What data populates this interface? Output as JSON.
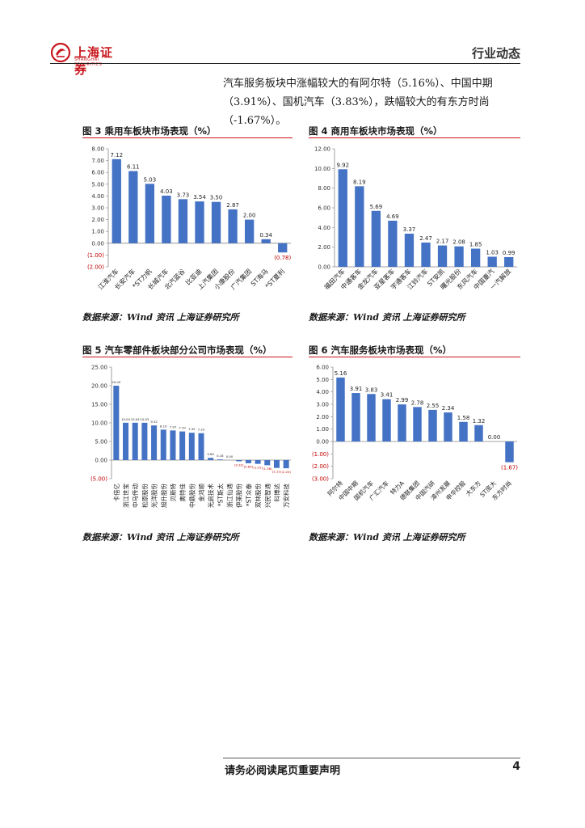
{
  "header": {
    "logo_text": "上海证券",
    "logo_sub": "SHANGHAI SECURITIES",
    "section_tag": "行业动态"
  },
  "intro": "汽车服务板块中涨幅较大的有阿尔特（5.16%）、中国中期（3.91%）、国机汽车（3.83%），跌幅较大的有东方时尚（-1.67%）。",
  "figures": [
    {
      "title": "图 3  乘用车板块市场表现（%）",
      "source": "数据来源：Wind 资讯  上海证券研究所"
    },
    {
      "title": "图 4  商用车板块市场表现（%）",
      "source": "数据来源：Wind 资讯  上海证券研究所"
    },
    {
      "title": "图 5  汽车零部件板块部分公司市场表现（%）",
      "source": "数据来源：Wind 资讯  上海证券研究所"
    },
    {
      "title": "图 6  汽车服务板块市场表现（%）",
      "source": "数据来源：Wind 资讯  上海证券研究所"
    }
  ],
  "footer": {
    "disclaimer": "请务必阅读尾页重要声明",
    "page": "4"
  },
  "colors": {
    "bar": "#4472c4",
    "negative_label": "#c00000",
    "accent": "#c8161d"
  },
  "chart_data": [
    {
      "type": "bar",
      "categories": [
        "江淮汽车",
        "长安汽车",
        "*ST力帆",
        "长城汽车",
        "北汽蓝谷",
        "比亚迪",
        "上汽集团",
        "小康股份",
        "广汽集团",
        "ST海马",
        "*ST夏利"
      ],
      "values": [
        7.12,
        6.11,
        5.03,
        4.03,
        3.73,
        3.54,
        3.5,
        2.87,
        2.0,
        0.34,
        -0.78
      ],
      "data_labels": [
        "7.12",
        "6.11",
        "5.03",
        "4.03",
        "3.73",
        "3.54",
        "3.50",
        "2.87",
        "2.00",
        "0.34",
        "(0.78)"
      ],
      "ylim": [
        -2,
        8
      ],
      "yticks": [
        "8.00",
        "7.00",
        "6.00",
        "5.00",
        "4.00",
        "3.00",
        "2.00",
        "1.00",
        "0.00",
        "(1.00)",
        "(2.00)"
      ]
    },
    {
      "type": "bar",
      "categories": [
        "福田汽车",
        "中通客车",
        "金龙汽车",
        "亚星客车",
        "宇通客车",
        "江铃汽车",
        "ST安凯",
        "曙光股份",
        "东风汽车",
        "中国重汽",
        "一汽解放"
      ],
      "values": [
        9.92,
        8.19,
        5.69,
        4.69,
        3.37,
        2.47,
        2.17,
        2.08,
        1.85,
        1.03,
        0.99
      ],
      "data_labels": [
        "9.92",
        "8.19",
        "5.69",
        "4.69",
        "3.37",
        "2.47",
        "2.17",
        "2.08",
        "1.85",
        "1.03",
        "0.99"
      ],
      "ylim": [
        0,
        12
      ],
      "yticks": [
        "12.00",
        "10.00",
        "8.00",
        "6.00",
        "4.00",
        "2.00",
        "0.00"
      ]
    },
    {
      "type": "bar",
      "categories": [
        "卡倍亿",
        "浙江世宝",
        "中马传动",
        "松原股份",
        "光洋股份",
        "旭升股份",
        "贝斯特",
        "奥特佳",
        "中鼎股份",
        "金鸿顺",
        "光启技术",
        "*ST斯太",
        "浙江仙通",
        "伊莱股份",
        "*ST众泰",
        "双林股份",
        "兴民智通",
        "科博达",
        "万安科技"
      ],
      "values": [
        20.0,
        10.04,
        10.04,
        10.03,
        9.32,
        8.19,
        7.97,
        7.7,
        7.35,
        7.23,
        0.6,
        0.18,
        0.0,
        -0.32,
        -0.85,
        -1.01,
        -1.38,
        -2.11,
        -2.2
      ],
      "data_labels": [
        "20.00",
        "10.04",
        "10.04",
        "10.03",
        "9.32",
        "8.19",
        "7.97",
        "7.70",
        "7.35",
        "7.23",
        "0.60",
        "0.18",
        "0.00",
        "(0.32)",
        "(0.85)",
        "(1.01)",
        "(1.38)",
        "(2.11)",
        "(2.20)"
      ],
      "ylim": [
        -5,
        25
      ],
      "yticks": [
        "25.00",
        "20.00",
        "15.00",
        "10.00",
        "5.00",
        "0.00",
        "(5.00)"
      ]
    },
    {
      "type": "bar",
      "categories": [
        "阿尔特",
        "中国中期",
        "国机汽车",
        "广汇汽车",
        "特力A",
        "德联集团",
        "中国汽研",
        "漳州发展",
        "申华控股",
        "大东方",
        "ST庞大",
        "东方时尚"
      ],
      "values": [
        5.16,
        3.91,
        3.83,
        3.41,
        2.99,
        2.78,
        2.55,
        2.34,
        1.58,
        1.32,
        0.0,
        -1.67
      ],
      "data_labels": [
        "5.16",
        "3.91",
        "3.83",
        "3.41",
        "2.99",
        "2.78",
        "2.55",
        "2.34",
        "1.58",
        "1.32",
        "0.00",
        "(1.67)"
      ],
      "ylim": [
        -3,
        6
      ],
      "yticks": [
        "6.00",
        "5.00",
        "4.00",
        "3.00",
        "2.00",
        "1.00",
        "0.00",
        "(1.00)",
        "(2.00)",
        "(3.00)"
      ]
    }
  ]
}
